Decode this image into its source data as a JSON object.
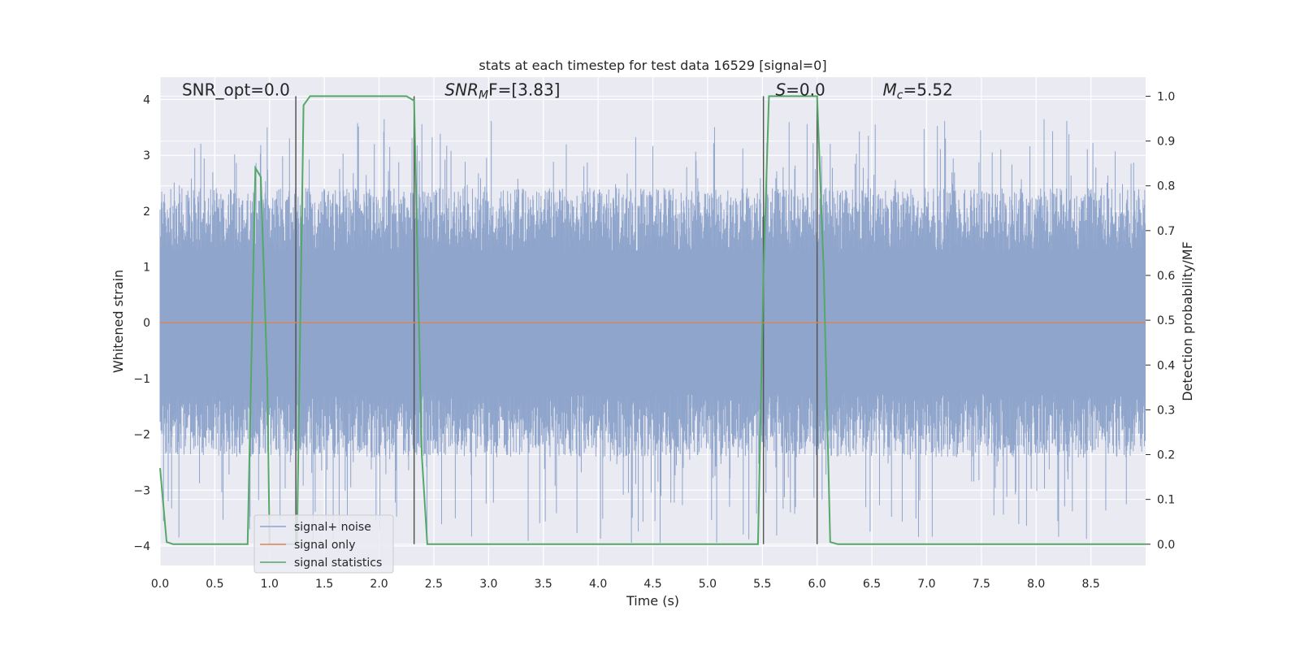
{
  "chart_data": {
    "type": "line",
    "title": "stats at each timestep for test data 16529 [signal=0]",
    "xlabel": "Time (s)",
    "ylabel_left": "Whitened strain",
    "ylabel_right": "Detection probability/MF",
    "xlim": [
      0.0,
      9.0
    ],
    "ylim_left": [
      -4.35,
      4.4
    ],
    "ylim_right": [
      -0.0475,
      1.0425
    ],
    "x_ticks": [
      0.0,
      0.5,
      1.0,
      1.5,
      2.0,
      2.5,
      3.0,
      3.5,
      4.0,
      4.5,
      5.0,
      5.5,
      6.0,
      6.5,
      7.0,
      7.5,
      8.0,
      8.5
    ],
    "x_tick_labels": [
      "0.0",
      "0.5",
      "1.0",
      "1.5",
      "2.0",
      "2.5",
      "3.0",
      "3.5",
      "4.0",
      "4.5",
      "5.0",
      "5.5",
      "6.0",
      "6.5",
      "7.0",
      "7.5",
      "8.0",
      "8.5"
    ],
    "y_left_ticks": [
      4,
      3,
      2,
      1,
      0,
      -1,
      -2,
      -3,
      -4
    ],
    "y_left_tick_labels": [
      "4",
      "3",
      "2",
      "1",
      "0",
      "−1",
      "−2",
      "−3",
      "−4"
    ],
    "y_right_ticks": [
      1.0,
      0.9,
      0.8,
      0.7,
      0.6,
      0.5,
      0.4,
      0.3,
      0.2,
      0.1,
      0.0
    ],
    "y_right_tick_labels": [
      "1.0",
      "0.9",
      "0.8",
      "0.7",
      "0.6",
      "0.5",
      "0.4",
      "0.3",
      "0.2",
      "0.1",
      "0.0"
    ],
    "grid": true,
    "legend_position": "lower-left",
    "annotations": [
      {
        "text": "SNR_opt=0.0",
        "x": 0.2,
        "y_right": 1.0
      },
      {
        "pre": "SNR",
        "sub": "M",
        "post": "F=[3.83]",
        "x": 2.6,
        "y_right": 1.0
      },
      {
        "pre": "S",
        "sub": "",
        "post": "=0.0",
        "x": 5.62,
        "y_right": 1.0
      },
      {
        "pre": "M",
        "sub": "c",
        "post": "=5.52",
        "x": 6.6,
        "y_right": 1.0
      }
    ],
    "vertical_lines": [
      {
        "x": 1.24,
        "y_right": [
          0.0,
          1.0
        ]
      },
      {
        "x": 2.32,
        "y_right": [
          0.0,
          1.0
        ]
      },
      {
        "x": 5.51,
        "y_right": [
          0.0,
          1.0
        ]
      },
      {
        "x": 6.0,
        "y_right": [
          0.0,
          1.0
        ]
      }
    ],
    "series": [
      {
        "name": "signal+ noise",
        "axis": "left",
        "color": "#8fa5cc",
        "kind": "noise",
        "amplitude_typical": 2.3,
        "amplitude_max": 3.65,
        "x_range": [
          0.0,
          9.0
        ]
      },
      {
        "name": "signal only",
        "axis": "left",
        "color": "#dd8452",
        "x": [
          0.0,
          9.0
        ],
        "y": [
          0.0,
          0.0
        ]
      },
      {
        "name": "signal statistics",
        "axis": "right",
        "color": "#55a868",
        "x": [
          0.0,
          0.06,
          0.12,
          0.8,
          0.87,
          0.92,
          0.98,
          1.0,
          1.25,
          1.31,
          1.37,
          2.25,
          2.32,
          2.39,
          2.44,
          5.46,
          5.51,
          5.56,
          6.0,
          6.06,
          6.12,
          6.19,
          9.0
        ],
        "y": [
          0.17,
          0.005,
          0.0,
          0.0,
          0.84,
          0.82,
          0.36,
          0.0,
          0.0,
          0.98,
          1.0,
          1.0,
          0.99,
          0.2,
          0.0,
          0.0,
          0.6,
          1.0,
          1.0,
          0.61,
          0.005,
          0.0,
          0.0
        ]
      }
    ]
  }
}
